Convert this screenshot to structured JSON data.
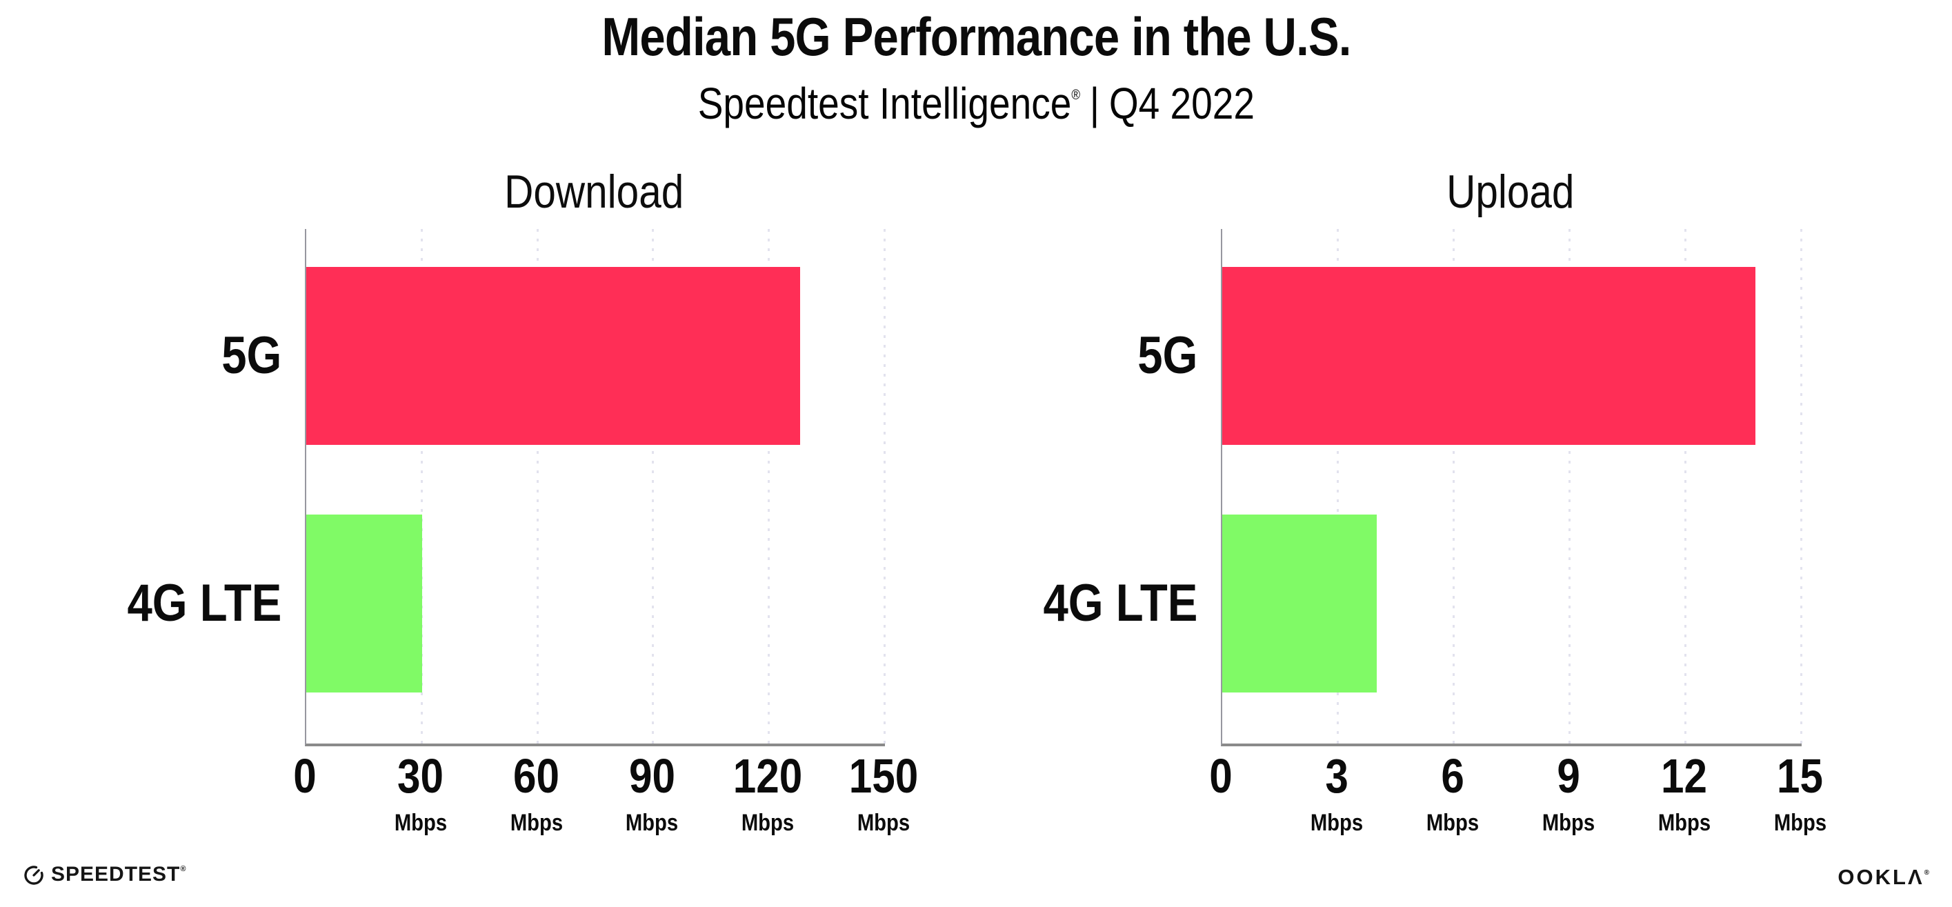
{
  "header": {
    "title": "Median 5G Performance in the U.S.",
    "subtitle_brand": "Speedtest Intelligence",
    "subtitle_reg": "®",
    "subtitle_sep": "|",
    "subtitle_period": "Q4 2022"
  },
  "chart_data": [
    {
      "type": "bar",
      "orientation": "horizontal",
      "title": "Download",
      "categories": [
        "5G",
        "4G LTE"
      ],
      "values": [
        128,
        30
      ],
      "unit": "Mbps",
      "xlim": [
        0,
        150
      ],
      "xticks": [
        0,
        30,
        60,
        90,
        120,
        150
      ],
      "bar_colors": [
        "#ff2e56",
        "#80fa66"
      ],
      "grid": "dotted vertical gridlines at each tick",
      "legend": "none"
    },
    {
      "type": "bar",
      "orientation": "horizontal",
      "title": "Upload",
      "categories": [
        "5G",
        "4G LTE"
      ],
      "values": [
        13.8,
        4
      ],
      "unit": "Mbps",
      "xlim": [
        0,
        15
      ],
      "xticks": [
        0,
        3,
        6,
        9,
        12,
        15
      ],
      "bar_colors": [
        "#ff2e56",
        "#80fa66"
      ],
      "grid": "dotted vertical gridlines at each tick",
      "legend": "none"
    }
  ],
  "colors": {
    "bar_5g": "#ff2e56",
    "bar_4g_lte": "#80fa66",
    "axis_line": "#8a8a8a",
    "grid_dot": "#e2e2ee",
    "text": "#0b0b0b"
  },
  "footer": {
    "speedtest_label": "SPEEDTEST",
    "speedtest_reg": "®",
    "ookla_label_prefix": "OOKL",
    "ookla_label_lambda": "Λ",
    "ookla_reg": "®"
  }
}
